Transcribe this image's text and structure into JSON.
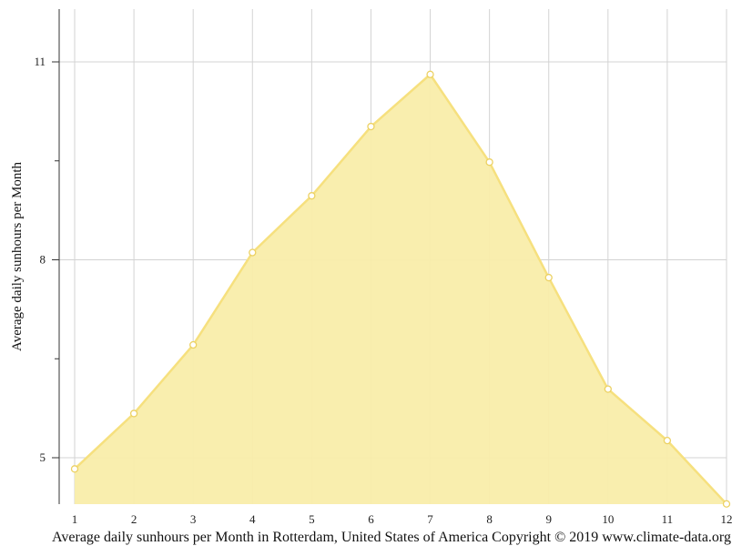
{
  "chart_data": {
    "type": "area",
    "title": "",
    "xlabel": "",
    "ylabel": "Average daily sunhours per Month",
    "caption": "Average daily sunhours per Month in Rotterdam, United States of America Copyright © 2019 www.climate-data.org",
    "x": [
      1,
      2,
      3,
      4,
      5,
      6,
      7,
      8,
      9,
      10,
      11,
      12
    ],
    "x_tick_labels": [
      "1",
      "2",
      "3",
      "4",
      "5",
      "6",
      "7",
      "8",
      "9",
      "10",
      "11",
      "12"
    ],
    "y_tick_labels": [
      "5",
      "8",
      "11"
    ],
    "y_ticks": [
      5,
      8,
      11
    ],
    "ylim": [
      4.3,
      11.8
    ],
    "xlim": [
      1,
      12
    ],
    "series": [
      {
        "values": [
          4.83,
          5.67,
          6.71,
          8.11,
          8.97,
          10.02,
          10.81,
          9.48,
          7.73,
          6.04,
          5.26,
          4.3
        ]
      }
    ],
    "grid": true,
    "colors": {
      "fill": "#f9edaa",
      "line": "#f6e07e",
      "marker_fill": "#ffffff",
      "marker_stroke": "#ecd162",
      "grid": "#d3d3d3",
      "axis": "#333333"
    }
  }
}
